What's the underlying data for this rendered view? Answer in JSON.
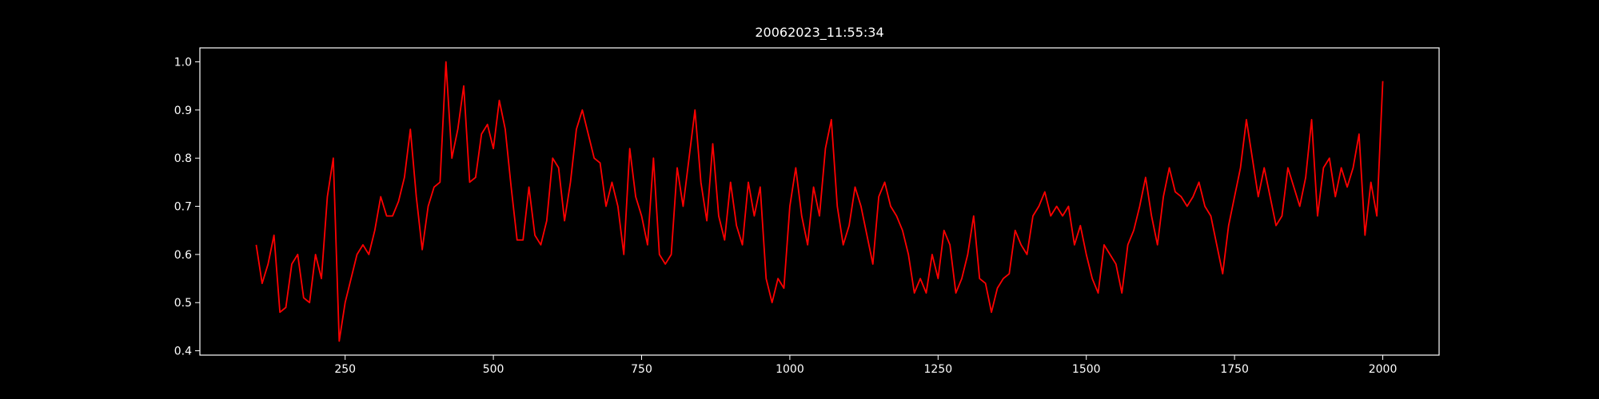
{
  "chart_data": {
    "type": "line",
    "title": "20062023_11:55:34",
    "x": [
      100,
      110,
      120,
      130,
      140,
      150,
      160,
      170,
      180,
      190,
      200,
      210,
      220,
      230,
      240,
      250,
      260,
      270,
      280,
      290,
      300,
      310,
      320,
      330,
      340,
      350,
      360,
      370,
      380,
      390,
      400,
      410,
      420,
      430,
      440,
      450,
      460,
      470,
      480,
      490,
      500,
      510,
      520,
      530,
      540,
      550,
      560,
      570,
      580,
      590,
      600,
      610,
      620,
      630,
      640,
      650,
      660,
      670,
      680,
      690,
      700,
      710,
      720,
      730,
      740,
      750,
      760,
      770,
      780,
      790,
      800,
      810,
      820,
      830,
      840,
      850,
      860,
      870,
      880,
      890,
      900,
      910,
      920,
      930,
      940,
      950,
      960,
      970,
      980,
      990,
      1000,
      1010,
      1020,
      1030,
      1040,
      1050,
      1060,
      1070,
      1080,
      1090,
      1100,
      1110,
      1120,
      1130,
      1140,
      1150,
      1160,
      1170,
      1180,
      1190,
      1200,
      1210,
      1220,
      1230,
      1240,
      1250,
      1260,
      1270,
      1280,
      1290,
      1300,
      1310,
      1320,
      1330,
      1340,
      1350,
      1360,
      1370,
      1380,
      1390,
      1400,
      1410,
      1420,
      1430,
      1440,
      1450,
      1460,
      1470,
      1480,
      1490,
      1500,
      1510,
      1520,
      1530,
      1540,
      1550,
      1560,
      1570,
      1580,
      1590,
      1600,
      1610,
      1620,
      1630,
      1640,
      1650,
      1660,
      1670,
      1680,
      1690,
      1700,
      1710,
      1720,
      1730,
      1740,
      1750,
      1760,
      1770,
      1780,
      1790,
      1800,
      1810,
      1820,
      1830,
      1840,
      1850,
      1860,
      1870,
      1880,
      1890,
      1900,
      1910,
      1920,
      1930,
      1940,
      1950,
      1960,
      1970,
      1980,
      1990,
      2000
    ],
    "series": [
      {
        "color": "#ff0000",
        "values": [
          0.62,
          0.54,
          0.58,
          0.64,
          0.48,
          0.49,
          0.58,
          0.6,
          0.51,
          0.5,
          0.6,
          0.55,
          0.72,
          0.8,
          0.42,
          0.5,
          0.55,
          0.6,
          0.62,
          0.6,
          0.65,
          0.72,
          0.68,
          0.68,
          0.71,
          0.76,
          0.86,
          0.72,
          0.61,
          0.7,
          0.74,
          0.75,
          1.0,
          0.8,
          0.86,
          0.95,
          0.75,
          0.76,
          0.85,
          0.87,
          0.82,
          0.92,
          0.86,
          0.74,
          0.63,
          0.63,
          0.74,
          0.64,
          0.62,
          0.67,
          0.8,
          0.78,
          0.67,
          0.75,
          0.86,
          0.9,
          0.85,
          0.8,
          0.79,
          0.7,
          0.75,
          0.7,
          0.6,
          0.82,
          0.72,
          0.68,
          0.62,
          0.8,
          0.6,
          0.58,
          0.6,
          0.78,
          0.7,
          0.8,
          0.9,
          0.75,
          0.67,
          0.83,
          0.68,
          0.63,
          0.75,
          0.66,
          0.62,
          0.75,
          0.68,
          0.74,
          0.55,
          0.5,
          0.55,
          0.53,
          0.7,
          0.78,
          0.68,
          0.62,
          0.74,
          0.68,
          0.82,
          0.88,
          0.7,
          0.62,
          0.66,
          0.74,
          0.7,
          0.64,
          0.58,
          0.72,
          0.75,
          0.7,
          0.68,
          0.65,
          0.6,
          0.52,
          0.55,
          0.52,
          0.6,
          0.55,
          0.65,
          0.62,
          0.52,
          0.55,
          0.6,
          0.68,
          0.55,
          0.54,
          0.48,
          0.53,
          0.55,
          0.56,
          0.65,
          0.62,
          0.6,
          0.68,
          0.7,
          0.73,
          0.68,
          0.7,
          0.68,
          0.7,
          0.62,
          0.66,
          0.6,
          0.55,
          0.52,
          0.62,
          0.6,
          0.58,
          0.52,
          0.62,
          0.65,
          0.7,
          0.76,
          0.68,
          0.62,
          0.72,
          0.78,
          0.73,
          0.72,
          0.7,
          0.72,
          0.75,
          0.7,
          0.68,
          0.62,
          0.56,
          0.66,
          0.72,
          0.78,
          0.88,
          0.8,
          0.72,
          0.78,
          0.72,
          0.66,
          0.68,
          0.78,
          0.74,
          0.7,
          0.76,
          0.88,
          0.68,
          0.78,
          0.8,
          0.72,
          0.78,
          0.74,
          0.78,
          0.85,
          0.64,
          0.75,
          0.68,
          0.96
        ]
      }
    ],
    "xlim": [
      5,
      2095
    ],
    "xticks": [
      250,
      500,
      750,
      1000,
      1250,
      1500,
      1750,
      2000
    ],
    "ylim": [
      0.391,
      1.029
    ],
    "yticks": [
      0.4,
      0.5,
      0.6,
      0.7,
      0.8,
      0.9,
      {
        "value": 1,
        "label": "1.0"
      }
    ]
  }
}
